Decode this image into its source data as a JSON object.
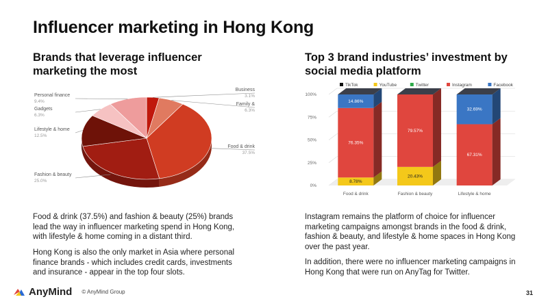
{
  "title": "Influencer marketing in Hong Kong",
  "left": {
    "heading": "Brands that leverage influencer marketing the most",
    "para1": "Food & drink (37.5%) and fashion & beauty (25%) brands lead the way in influencer marketing spend in Hong Kong, with lifestyle & home coming in a distant third.",
    "para2": "Hong Kong is also the only market in Asia where personal finance brands - which includes credit cards, investments and insurance - appear in the top four slots."
  },
  "right": {
    "heading": "Top 3 brand industries’ investment by social media platform",
    "para1": "Instagram remains the platform of choice for influencer marketing campaigns amongst brands in the food & drink, fashion & beauty, and lifestyle & home spaces in Hong Kong over the past year.",
    "para2": "In addition, there were no influencer marketing campaigns in Hong Kong that were run on AnyTag for Twitter."
  },
  "chart_data": [
    {
      "type": "pie",
      "title": "",
      "slices": [
        {
          "label": "Business",
          "pct_label": "3.1%",
          "value": 3.1,
          "color": "#c0180c"
        },
        {
          "label": "Family &",
          "pct_label": "6.3%",
          "value": 6.3,
          "color": "#e07a60"
        },
        {
          "label": "Food & drink",
          "pct_label": "37.5%",
          "value": 37.5,
          "color": "#d03c22"
        },
        {
          "label": "Fashion & beauty",
          "pct_label": "25.0%",
          "value": 25.0,
          "color": "#a11d12"
        },
        {
          "label": "Lifestyle & home",
          "pct_label": "12.5%",
          "value": 12.5,
          "color": "#6e1208"
        },
        {
          "label": "Gadgets",
          "pct_label": "6.3%",
          "value": 6.3,
          "color": "#f6c2c2"
        },
        {
          "label": "Personal finance",
          "pct_label": "9.4%",
          "value": 9.4,
          "color": "#ee9c9c"
        }
      ]
    },
    {
      "type": "bar",
      "stacked": true,
      "title": "",
      "categories": [
        "Food & drink",
        "Fashion & beauty",
        "Lifestyle & home"
      ],
      "yticks": [
        "0%",
        "25%",
        "50%",
        "75%",
        "100%"
      ],
      "ylim": [
        0,
        100
      ],
      "legend_position": "top",
      "series": [
        {
          "name": "TikTok",
          "color": "#111111",
          "values": [
            0,
            0,
            0
          ],
          "labels": [
            "",
            "",
            ""
          ]
        },
        {
          "name": "YouTube",
          "color": "#f4c81a",
          "values": [
            8.78,
            20.43,
            0
          ],
          "labels": [
            "8.78%",
            "20.43%",
            ""
          ]
        },
        {
          "name": "Twitter",
          "color": "#2eaa4a",
          "values": [
            0,
            0,
            0
          ],
          "labels": [
            "",
            "",
            ""
          ]
        },
        {
          "name": "Instagram",
          "color": "#e0463e",
          "values": [
            76.35,
            79.57,
            67.31
          ],
          "labels": [
            "76.35%",
            "79.57%",
            "67.31%"
          ]
        },
        {
          "name": "Facebook",
          "color": "#3a76c4",
          "values": [
            14.86,
            0,
            32.69
          ],
          "labels": [
            "14.86%",
            "",
            "32.69%"
          ]
        }
      ]
    }
  ],
  "footer": {
    "brand": "AnyMind",
    "copyright": "© AnyMind Group",
    "page": "31"
  }
}
